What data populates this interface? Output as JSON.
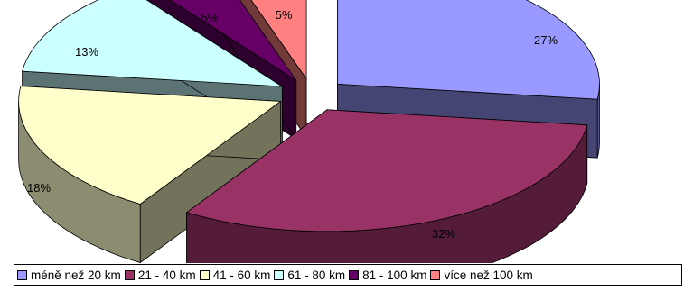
{
  "chart_data": {
    "type": "pie",
    "style": "3d-exploded",
    "categories": [
      "méně než 20 km",
      "21 - 40 km",
      "41 - 60 km",
      "61 - 80 km",
      "81 - 100 km",
      "více než 100 km"
    ],
    "values": [
      27,
      32,
      18,
      13,
      5,
      5
    ],
    "labels": [
      "27%",
      "32%",
      "18%",
      "13%",
      "5%",
      "5%"
    ],
    "colors": [
      "#9999FF",
      "#993366",
      "#FFFFCC",
      "#CCFFFF",
      "#660066",
      "#FF8080"
    ],
    "legend_position": "bottom"
  }
}
